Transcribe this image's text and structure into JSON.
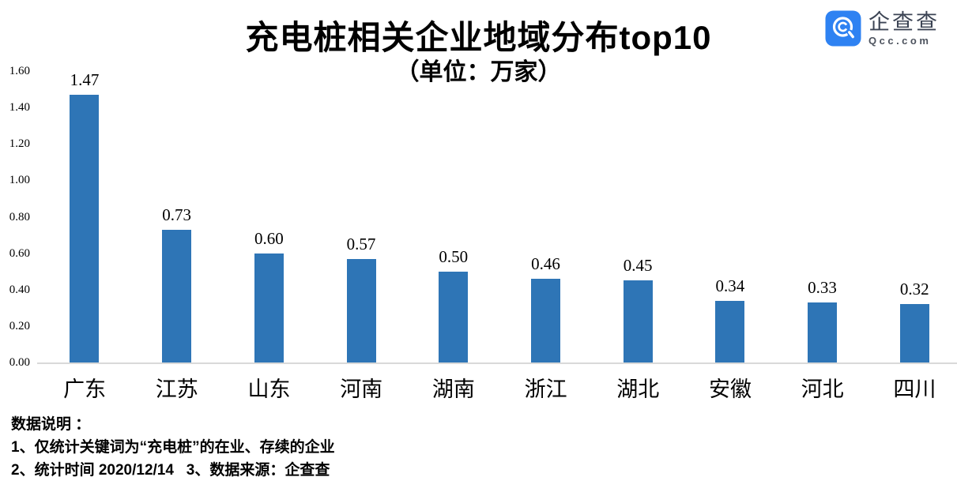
{
  "header": {
    "title": "充电桩相关企业地域分布top10",
    "subtitle": "（单位：万家）"
  },
  "logo": {
    "name": "企查查",
    "domain": "Qcc.com",
    "brand_color": "#2E82F2"
  },
  "chart_data": {
    "type": "bar",
    "title": "充电桩相关企业地域分布top10",
    "subtitle": "（单位：万家）",
    "unit": "万家",
    "categories": [
      "广东",
      "江苏",
      "山东",
      "河南",
      "湖南",
      "浙江",
      "湖北",
      "安徽",
      "河北",
      "四川"
    ],
    "values": [
      1.47,
      0.73,
      0.6,
      0.57,
      0.5,
      0.46,
      0.45,
      0.34,
      0.33,
      0.32
    ],
    "value_labels": [
      "1.47",
      "0.73",
      "0.60",
      "0.57",
      "0.50",
      "0.46",
      "0.45",
      "0.34",
      "0.33",
      "0.32"
    ],
    "ylim": [
      0,
      1.6
    ],
    "ytick_labels": [
      "0.00",
      "0.20",
      "0.40",
      "0.60",
      "0.80",
      "1.00",
      "1.20",
      "1.40",
      "1.60"
    ],
    "grid": false,
    "legend": false,
    "bar_color": "#2E75B6",
    "axis_line_color": "#D9D9D9"
  },
  "footer": {
    "lines": [
      "数据说明 ：",
      "1、仅统计关键词为“充电桩”的在业、存续的企业",
      "2、统计时间 2020/12/14   3、数据来源：企查查"
    ]
  }
}
